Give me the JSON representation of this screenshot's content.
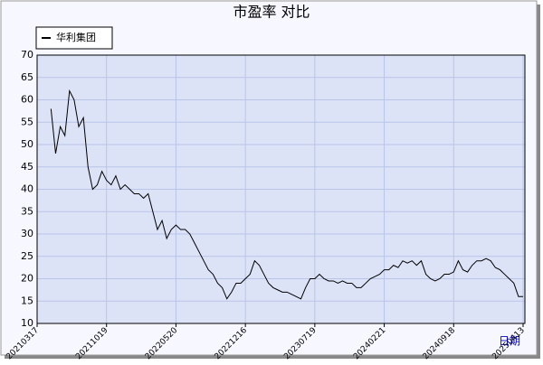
{
  "chart_data": {
    "type": "line",
    "title": "市盈率  对比",
    "x_label": "日期",
    "categories": [
      "20210317",
      null,
      null,
      null,
      null,
      null,
      null,
      null,
      null,
      null,
      null,
      null,
      null,
      null,
      null,
      "20211019",
      null,
      null,
      null,
      null,
      null,
      null,
      null,
      null,
      null,
      null,
      null,
      null,
      null,
      null,
      "20220520",
      null,
      null,
      null,
      null,
      null,
      null,
      null,
      null,
      null,
      null,
      null,
      null,
      null,
      null,
      "20221216",
      null,
      null,
      null,
      null,
      null,
      null,
      null,
      null,
      null,
      null,
      null,
      null,
      null,
      null,
      "20230719",
      null,
      null,
      null,
      null,
      null,
      null,
      null,
      null,
      null,
      null,
      null,
      null,
      null,
      null,
      "20240221",
      null,
      null,
      null,
      null,
      null,
      null,
      null,
      null,
      null,
      null,
      null,
      null,
      null,
      null,
      "20240918",
      null,
      null,
      null,
      null,
      null,
      null,
      null,
      null,
      null,
      null,
      null,
      null,
      null,
      null,
      "20250413"
    ],
    "series": [
      {
        "name": "华利集团",
        "color": "#000000",
        "values": [
          null,
          null,
          null,
          58,
          48,
          54,
          52,
          62,
          60,
          54,
          56,
          45,
          40,
          41,
          44,
          42,
          41,
          43,
          40,
          41,
          40,
          39,
          39,
          38,
          39,
          35,
          31,
          33,
          29,
          31,
          32,
          31,
          31,
          30,
          28,
          26,
          24,
          22,
          21,
          19,
          18,
          15.5,
          17,
          19,
          19,
          20,
          21,
          24,
          23,
          21,
          19,
          18,
          17.5,
          17,
          17,
          16.5,
          16,
          15.5,
          18,
          20,
          20,
          21,
          20,
          19.5,
          19.5,
          19,
          19.5,
          19,
          19,
          18,
          18,
          19,
          20,
          20.5,
          21,
          22,
          22,
          23,
          22.5,
          24,
          23.5,
          24,
          23,
          24,
          21,
          20,
          19.5,
          20,
          21,
          21,
          21.5,
          24,
          22,
          21.5,
          23,
          24,
          24,
          24.5,
          24,
          22.5,
          22,
          21,
          20,
          19,
          16,
          16
        ]
      }
    ],
    "ylim": [
      10,
      70
    ],
    "yticks": [
      10,
      15,
      20,
      25,
      30,
      35,
      40,
      45,
      50,
      55,
      60,
      65,
      70
    ],
    "grid": true,
    "legend": "top-left"
  }
}
